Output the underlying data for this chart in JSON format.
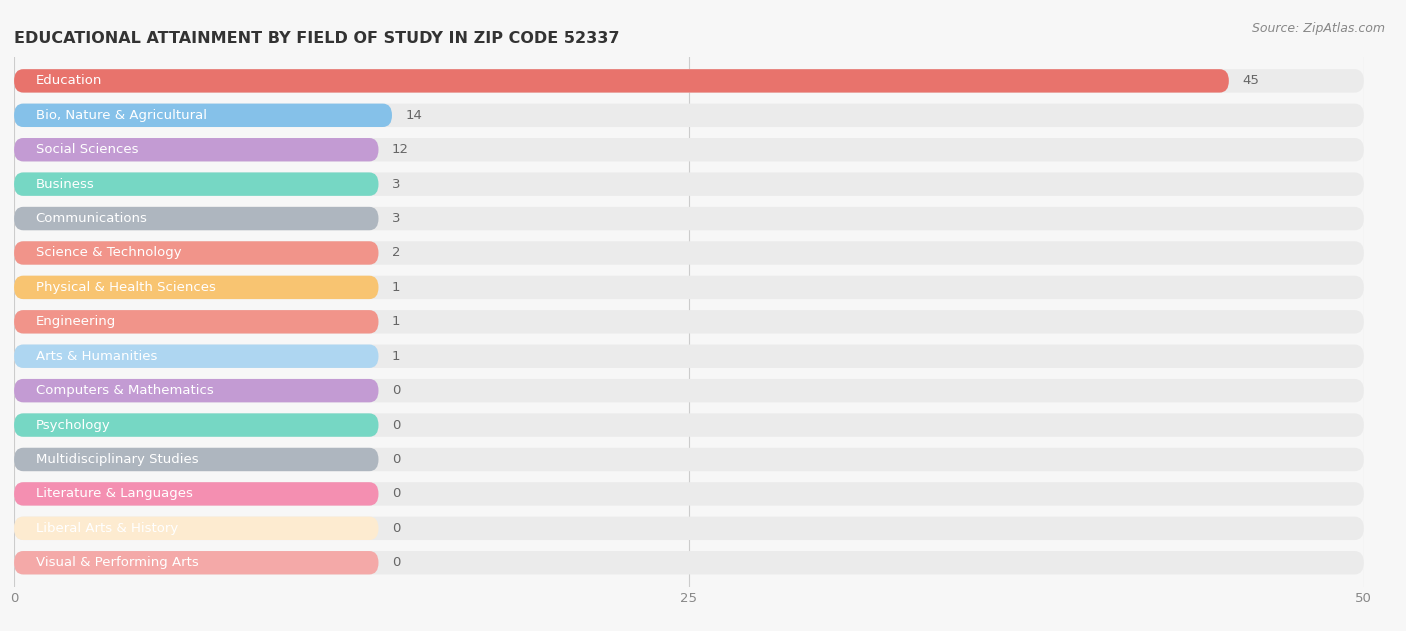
{
  "title": "EDUCATIONAL ATTAINMENT BY FIELD OF STUDY IN ZIP CODE 52337",
  "source": "Source: ZipAtlas.com",
  "categories": [
    "Education",
    "Bio, Nature & Agricultural",
    "Social Sciences",
    "Business",
    "Communications",
    "Science & Technology",
    "Physical & Health Sciences",
    "Engineering",
    "Arts & Humanities",
    "Computers & Mathematics",
    "Psychology",
    "Multidisciplinary Studies",
    "Literature & Languages",
    "Liberal Arts & History",
    "Visual & Performing Arts"
  ],
  "values": [
    45,
    14,
    12,
    3,
    3,
    2,
    1,
    1,
    1,
    0,
    0,
    0,
    0,
    0,
    0
  ],
  "bar_colors": [
    "#E8736C",
    "#85C1E9",
    "#C39BD3",
    "#76D7C4",
    "#AEB6BF",
    "#F1948A",
    "#F8C471",
    "#F1948A",
    "#AED6F1",
    "#C39BD3",
    "#76D7C4",
    "#AEB6BF",
    "#F48FB1",
    "#FDEBD0",
    "#F4A9A8"
  ],
  "label_colors": [
    "white",
    "white",
    "white",
    "white",
    "white",
    "white",
    "white",
    "white",
    "white",
    "white",
    "white",
    "white",
    "white",
    "#888888",
    "white"
  ],
  "xlim": [
    0,
    50
  ],
  "xticks": [
    0,
    25,
    50
  ],
  "background_color": "#f7f7f7",
  "bar_bg_color": "#EBEBEB",
  "title_fontsize": 11.5,
  "label_fontsize": 9.5,
  "value_fontsize": 9.5,
  "source_fontsize": 9
}
